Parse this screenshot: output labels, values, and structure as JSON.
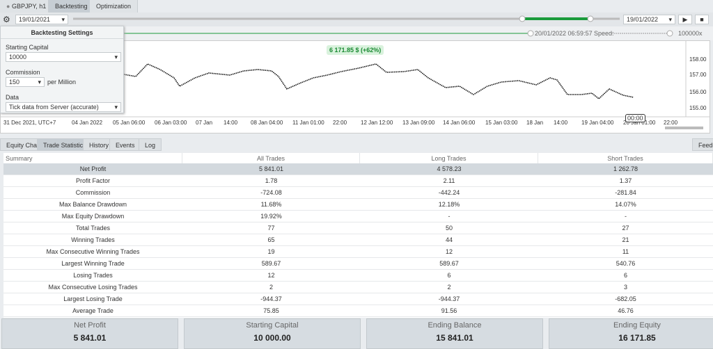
{
  "tabs": [
    "GBPJPY, h1",
    "Backtesting",
    "Optimization"
  ],
  "toolbar": {
    "start_date": "19/01/2021",
    "end_date": "19/01/2022",
    "progress_time": "20/01/2022 06:59:57",
    "speed_label": "Speed:",
    "speed_value": "100000x"
  },
  "settings": {
    "title": "Backtesting Settings",
    "starting_capital_label": "Starting Capital",
    "starting_capital": "10000",
    "commission_label": "Commission",
    "commission": "150",
    "commission_unit": "per Million",
    "data_label": "Data",
    "data_source": "Tick data from Server (accurate)"
  },
  "chart": {
    "badge": "6 171.85 $ (+62%)",
    "price_labels": [
      "158.00",
      "157.00",
      "156.00",
      "155.00"
    ],
    "time_labels": [
      "31 Dec 2021, UTC+7",
      "04 Jan 2022",
      "05 Jan 06:00",
      "06 Jan 03:00",
      "07 Jan",
      "14:00",
      "08 Jan 04:00",
      "11 Jan 01:00",
      "22:00",
      "12 Jan 12:00",
      "13 Jan 09:00",
      "14 Jan 06:00",
      "15 Jan 03:00",
      "18 Jan",
      "14:00",
      "19 Jan 04:00",
      "20 Jan 01:00",
      "22:00"
    ],
    "cursor_time": "00:00"
  },
  "bottom_tabs": [
    "Equity Chart",
    "Trade Statistics",
    "History",
    "Events",
    "Log"
  ],
  "feedback": "Feedback",
  "table": {
    "columns": [
      "Summary",
      "All Trades",
      "Long Trades",
      "Short Trades"
    ],
    "rows": [
      [
        "Net Profit",
        "5 841.01",
        "4 578.23",
        "1 262.78"
      ],
      [
        "Profit Factor",
        "1.78",
        "2.11",
        "1.37"
      ],
      [
        "Commission",
        "-724.08",
        "-442.24",
        "-281.84"
      ],
      [
        "Max Balance Drawdown",
        "11.68%",
        "12.18%",
        "14.07%"
      ],
      [
        "Max Equity Drawdown",
        "19.92%",
        "-",
        "-"
      ],
      [
        "Total Trades",
        "77",
        "50",
        "27"
      ],
      [
        "Winning Trades",
        "65",
        "44",
        "21"
      ],
      [
        "Max Consecutive Winning Trades",
        "19",
        "12",
        "11"
      ],
      [
        "Largest Winning Trade",
        "589.67",
        "589.67",
        "540.76"
      ],
      [
        "Losing Trades",
        "12",
        "6",
        "6"
      ],
      [
        "Max Consecutive Losing Trades",
        "2",
        "2",
        "3"
      ],
      [
        "Largest Losing Trade",
        "-944.37",
        "-944.37",
        "-682.05"
      ],
      [
        "Average Trade",
        "75.85",
        "91.56",
        "46.76"
      ]
    ]
  },
  "summary_cards": [
    {
      "label": "Net Profit",
      "value": "5 841.01"
    },
    {
      "label": "Starting Capital",
      "value": "10 000.00"
    },
    {
      "label": "Ending Balance",
      "value": "15 841.01"
    },
    {
      "label": "Ending Equity",
      "value": "16 171.85"
    }
  ]
}
